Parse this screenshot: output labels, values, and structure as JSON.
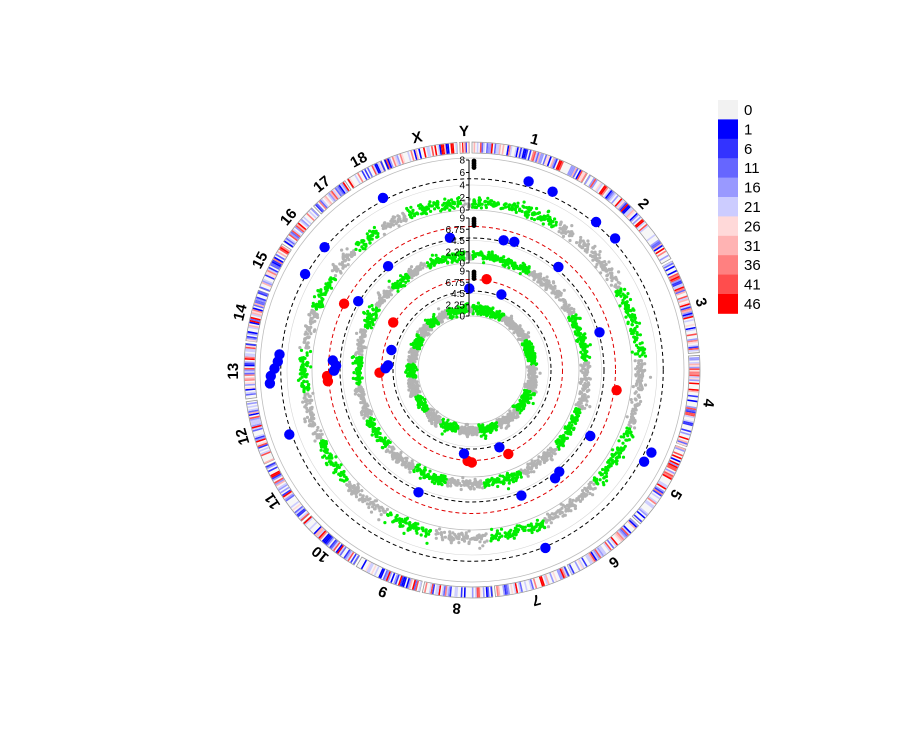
{
  "chart_data": {
    "type": "scatter",
    "title": "",
    "chromosomes": [
      "1",
      "2",
      "3",
      "4",
      "5",
      "6",
      "7",
      "8",
      "9",
      "10",
      "11",
      "12",
      "13",
      "14",
      "15",
      "16",
      "17",
      "18",
      "X",
      "Y"
    ],
    "legend": {
      "values": [
        "0",
        "1",
        "6",
        "11",
        "16",
        "21",
        "26",
        "31",
        "36",
        "41",
        "46"
      ],
      "colors": [
        "#f2f2f2",
        "#0000ff",
        "#3333ff",
        "#6666ff",
        "#9999ff",
        "#ccccff",
        "#ffd9d9",
        "#ffb3b3",
        "#ff8080",
        "#ff4d4d",
        "#ff0000"
      ]
    },
    "tracks": [
      {
        "ticks": [
          "0",
          "2",
          "4",
          "6",
          "8"
        ],
        "ymax": 8,
        "threshold_black": 5,
        "threshold_red": null
      },
      {
        "ticks": [
          "0",
          "2.25",
          "4.5",
          "6.75",
          "9"
        ],
        "ymax": 9,
        "threshold_black": 5,
        "threshold_red": 7.3
      },
      {
        "ticks": [
          "0",
          "2.25",
          "4.5",
          "6.75",
          "9"
        ],
        "ymax": 9,
        "threshold_black": 5,
        "threshold_red": 7.3
      }
    ],
    "highlight_colors": {
      "odd": "#00ee00",
      "even": "#b3b3b3",
      "suggestive": "#0000ff",
      "significant": "#ff0000"
    },
    "hits": [
      {
        "track": 0,
        "chr": "1",
        "pos": 0.55,
        "value": 5.9,
        "level": "suggestive"
      },
      {
        "track": 0,
        "chr": "1",
        "pos": 0.8,
        "value": 5.7,
        "level": "suggestive"
      },
      {
        "track": 0,
        "chr": "2",
        "pos": 0.3,
        "value": 5.3,
        "level": "suggestive"
      },
      {
        "track": 0,
        "chr": "2",
        "pos": 0.55,
        "value": 5.5,
        "level": "suggestive"
      },
      {
        "track": 0,
        "chr": "5",
        "pos": 0.2,
        "value": 6.0,
        "level": "suggestive"
      },
      {
        "track": 0,
        "chr": "5",
        "pos": 0.35,
        "value": 5.6,
        "level": "suggestive"
      },
      {
        "track": 0,
        "chr": "7",
        "pos": 0.15,
        "value": 5.2,
        "level": "suggestive"
      },
      {
        "track": 0,
        "chr": "12",
        "pos": 0.3,
        "value": 5.4,
        "level": "suggestive"
      },
      {
        "track": 0,
        "chr": "13",
        "pos": 0.25,
        "value": 6.8,
        "level": "suggestive"
      },
      {
        "track": 0,
        "chr": "13",
        "pos": 0.4,
        "value": 6.6,
        "level": "suggestive"
      },
      {
        "track": 0,
        "chr": "13",
        "pos": 0.55,
        "value": 6.0,
        "level": "suggestive"
      },
      {
        "track": 0,
        "chr": "13",
        "pos": 0.7,
        "value": 5.5,
        "level": "suggestive"
      },
      {
        "track": 0,
        "chr": "13",
        "pos": 0.85,
        "value": 5.3,
        "level": "suggestive"
      },
      {
        "track": 0,
        "chr": "15",
        "pos": 0.7,
        "value": 5.2,
        "level": "suggestive"
      },
      {
        "track": 0,
        "chr": "16",
        "pos": 0.5,
        "value": 5.1,
        "level": "suggestive"
      },
      {
        "track": 0,
        "chr": "18",
        "pos": 0.6,
        "value": 5.4,
        "level": "suggestive"
      },
      {
        "track": 1,
        "chr": "1",
        "pos": 0.45,
        "value": 5.3,
        "level": "suggestive"
      },
      {
        "track": 1,
        "chr": "1",
        "pos": 0.6,
        "value": 5.6,
        "level": "suggestive"
      },
      {
        "track": 1,
        "chr": "2",
        "pos": 0.3,
        "value": 5.5,
        "level": "suggestive"
      },
      {
        "track": 1,
        "chr": "3",
        "pos": 0.5,
        "value": 5.2,
        "level": "suggestive"
      },
      {
        "track": 1,
        "chr": "4",
        "pos": 0.5,
        "value": 7.8,
        "level": "significant"
      },
      {
        "track": 1,
        "chr": "5",
        "pos": 0.4,
        "value": 5.7,
        "level": "suggestive"
      },
      {
        "track": 1,
        "chr": "6",
        "pos": 0.3,
        "value": 5.4,
        "level": "suggestive"
      },
      {
        "track": 1,
        "chr": "6",
        "pos": 0.45,
        "value": 5.9,
        "level": "suggestive"
      },
      {
        "track": 1,
        "chr": "7",
        "pos": 0.2,
        "value": 5.6,
        "level": "suggestive"
      },
      {
        "track": 1,
        "chr": "9",
        "pos": 0.6,
        "value": 5.3,
        "level": "suggestive"
      },
      {
        "track": 1,
        "chr": "13",
        "pos": 0.2,
        "value": 7.5,
        "level": "significant"
      },
      {
        "track": 1,
        "chr": "13",
        "pos": 0.35,
        "value": 7.6,
        "level": "significant"
      },
      {
        "track": 1,
        "chr": "13",
        "pos": 0.5,
        "value": 6.2,
        "level": "suggestive"
      },
      {
        "track": 1,
        "chr": "13",
        "pos": 0.65,
        "value": 5.8,
        "level": "suggestive"
      },
      {
        "track": 1,
        "chr": "13",
        "pos": 0.8,
        "value": 6.5,
        "level": "suggestive"
      },
      {
        "track": 1,
        "chr": "15",
        "pos": 0.5,
        "value": 7.4,
        "level": "significant"
      },
      {
        "track": 1,
        "chr": "15",
        "pos": 0.8,
        "value": 5.2,
        "level": "suggestive"
      },
      {
        "track": 1,
        "chr": "17",
        "pos": 0.5,
        "value": 5.3,
        "level": "suggestive"
      },
      {
        "track": 1,
        "chr": "X",
        "pos": 0.7,
        "value": 5.4,
        "level": "suggestive"
      },
      {
        "track": 2,
        "chr": "1",
        "pos": 0.3,
        "value": 7.6,
        "level": "significant"
      },
      {
        "track": 2,
        "chr": "7",
        "pos": 0.1,
        "value": 7.5,
        "level": "significant"
      },
      {
        "track": 2,
        "chr": "7",
        "pos": 0.3,
        "value": 5.6,
        "level": "suggestive"
      },
      {
        "track": 2,
        "chr": "8",
        "pos": 0.3,
        "value": 7.7,
        "level": "significant"
      },
      {
        "track": 2,
        "chr": "8",
        "pos": 0.45,
        "value": 7.4,
        "level": "significant"
      },
      {
        "track": 2,
        "chr": "8",
        "pos": 0.6,
        "value": 6.0,
        "level": "suggestive"
      },
      {
        "track": 2,
        "chr": "13",
        "pos": 0.4,
        "value": 7.7,
        "level": "significant"
      },
      {
        "track": 2,
        "chr": "13",
        "pos": 0.6,
        "value": 6.5,
        "level": "suggestive"
      },
      {
        "track": 2,
        "chr": "13",
        "pos": 0.75,
        "value": 6.0,
        "level": "suggestive"
      },
      {
        "track": 2,
        "chr": "14",
        "pos": 0.5,
        "value": 5.8,
        "level": "suggestive"
      },
      {
        "track": 2,
        "chr": "15",
        "pos": 0.8,
        "value": 7.6,
        "level": "significant"
      },
      {
        "track": 2,
        "chr": "Y",
        "pos": 0.5,
        "value": 5.5,
        "level": "suggestive"
      },
      {
        "track": 2,
        "chr": "1",
        "pos": 0.7,
        "value": 5.4,
        "level": "suggestive"
      }
    ]
  }
}
